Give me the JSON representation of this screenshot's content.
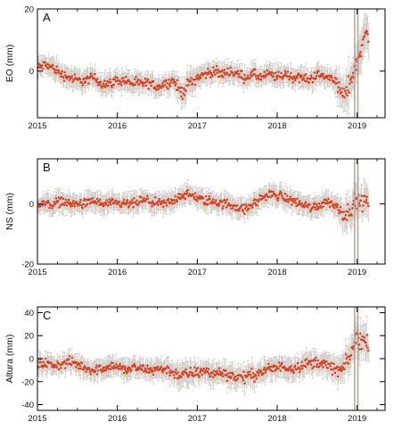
{
  "chart_data": [
    {
      "type": "scatter",
      "panel_label": "A",
      "ylabel": "EO (mm)",
      "ylim": [
        -15,
        20
      ],
      "yticks": [
        20,
        0
      ],
      "xlim": [
        2015.0,
        2019.35
      ],
      "xticks": [
        2015,
        2016,
        2017,
        2018,
        2019
      ],
      "x_tick_labels": [
        "2015",
        "2016",
        "2017",
        "2018",
        "2019"
      ],
      "error_bars": true,
      "marker_color": "#d94020",
      "errorbar_color": "#b8b2aa",
      "series": [
        {
          "x": [
            2015.0,
            2015.1,
            2015.2,
            2015.3,
            2015.4,
            2015.5,
            2015.6,
            2015.7,
            2015.8,
            2015.9,
            2016.0,
            2016.1,
            2016.2,
            2016.3,
            2016.4,
            2016.5,
            2016.6,
            2016.7,
            2016.8,
            2016.9,
            2017.0,
            2017.1,
            2017.2,
            2017.3,
            2017.4,
            2017.5,
            2017.6,
            2017.7,
            2017.8,
            2017.9,
            2018.0,
            2018.1,
            2018.2,
            2018.3,
            2018.4,
            2018.5,
            2018.6,
            2018.7,
            2018.8,
            2018.85,
            2018.9,
            2018.95,
            2019.0,
            2019.05,
            2019.1,
            2019.15
          ],
          "y": [
            1,
            2,
            1,
            -1,
            -2,
            -3,
            -3,
            -2,
            -4,
            -4,
            -3,
            -3,
            -4,
            -4,
            -4,
            -5,
            -4,
            -3,
            -7,
            -4,
            -2,
            -1,
            0,
            -1,
            0,
            -1,
            -2,
            -1,
            -2,
            -1,
            -2,
            -1,
            -2,
            -2,
            -3,
            -1,
            -2,
            -2,
            -7,
            -8,
            -4,
            -1,
            3,
            8,
            11,
            12
          ],
          "err": [
            3,
            3,
            3,
            3,
            3,
            3,
            3,
            3,
            3,
            3,
            3,
            3,
            3,
            3,
            3,
            3,
            3,
            3,
            4,
            4,
            3,
            3,
            3,
            3,
            3,
            3,
            3,
            3,
            3,
            3,
            3,
            3,
            3,
            3,
            3,
            3,
            3,
            3,
            5,
            5,
            6,
            5,
            5,
            6,
            6,
            6
          ]
        }
      ],
      "spikes": [
        {
          "x": 2018.97,
          "low": -15,
          "high": 20
        },
        {
          "x": 2019.01,
          "low": -15,
          "high": 20
        }
      ]
    },
    {
      "type": "scatter",
      "panel_label": "B",
      "ylabel": "NS (mm)",
      "ylim": [
        -20,
        15
      ],
      "yticks": [
        0,
        -20
      ],
      "xlim": [
        2015.0,
        2019.35
      ],
      "xticks": [
        2015,
        2016,
        2017,
        2018,
        2019
      ],
      "x_tick_labels": [
        "2015",
        "2016",
        "2017",
        "2018",
        "2019"
      ],
      "error_bars": true,
      "marker_color": "#d94020",
      "errorbar_color": "#b8b2aa",
      "series": [
        {
          "x": [
            2015.0,
            2015.1,
            2015.2,
            2015.3,
            2015.4,
            2015.5,
            2015.6,
            2015.7,
            2015.8,
            2015.9,
            2016.0,
            2016.1,
            2016.2,
            2016.3,
            2016.4,
            2016.5,
            2016.6,
            2016.7,
            2016.8,
            2016.9,
            2017.0,
            2017.1,
            2017.2,
            2017.3,
            2017.4,
            2017.5,
            2017.6,
            2017.7,
            2017.8,
            2017.9,
            2018.0,
            2018.1,
            2018.2,
            2018.3,
            2018.4,
            2018.5,
            2018.6,
            2018.7,
            2018.8,
            2018.85,
            2018.9,
            2018.95,
            2019.0,
            2019.05,
            2019.1,
            2019.15
          ],
          "y": [
            0,
            0,
            0,
            1,
            0,
            0,
            0,
            1,
            0,
            0,
            0,
            0,
            0,
            1,
            1,
            0,
            0,
            1,
            3,
            3,
            2,
            1,
            1,
            0,
            0,
            -1,
            -2,
            0,
            2,
            3,
            3,
            2,
            1,
            0,
            -1,
            -1,
            1,
            0,
            -2,
            -4,
            -2,
            0,
            1,
            0,
            1,
            1
          ],
          "err": [
            3,
            3,
            3,
            3,
            3,
            3,
            3,
            3,
            3,
            3,
            3,
            3,
            3,
            3,
            3,
            3,
            3,
            3,
            3,
            3,
            3,
            3,
            3,
            3,
            3,
            3,
            3,
            3,
            3,
            3,
            3,
            3,
            3,
            3,
            3,
            3,
            3,
            3,
            4,
            5,
            5,
            5,
            5,
            5,
            5,
            5
          ]
        }
      ],
      "spikes": [
        {
          "x": 2018.97,
          "low": -20,
          "high": 15
        },
        {
          "x": 2019.01,
          "low": -20,
          "high": 15
        }
      ]
    },
    {
      "type": "scatter",
      "panel_label": "C",
      "ylabel": "Altura (mm)",
      "ylim": [
        -45,
        45
      ],
      "yticks": [
        40,
        20,
        0,
        -20,
        -40
      ],
      "xlim": [
        2015.0,
        2019.35
      ],
      "xticks": [
        2015,
        2016,
        2017,
        2018,
        2019
      ],
      "x_tick_labels": [
        "2015",
        "2016",
        "2017",
        "2018",
        "2019"
      ],
      "error_bars": true,
      "marker_color": "#d94020",
      "errorbar_color": "#b8b2aa",
      "series": [
        {
          "x": [
            2015.0,
            2015.1,
            2015.2,
            2015.3,
            2015.4,
            2015.5,
            2015.6,
            2015.7,
            2015.8,
            2015.9,
            2016.0,
            2016.1,
            2016.2,
            2016.3,
            2016.4,
            2016.5,
            2016.6,
            2016.7,
            2016.8,
            2016.9,
            2017.0,
            2017.1,
            2017.2,
            2017.3,
            2017.4,
            2017.5,
            2017.6,
            2017.7,
            2017.8,
            2017.9,
            2018.0,
            2018.1,
            2018.2,
            2018.3,
            2018.4,
            2018.5,
            2018.6,
            2018.7,
            2018.8,
            2018.85,
            2018.9,
            2018.95,
            2019.0,
            2019.05,
            2019.1,
            2019.15
          ],
          "y": [
            -5,
            -4,
            -6,
            -5,
            -3,
            -5,
            -8,
            -10,
            -9,
            -6,
            -7,
            -10,
            -8,
            -9,
            -10,
            -9,
            -9,
            -12,
            -15,
            -13,
            -12,
            -11,
            -13,
            -12,
            -14,
            -16,
            -16,
            -14,
            -12,
            -9,
            -8,
            -7,
            -8,
            -6,
            -4,
            -3,
            -5,
            -9,
            -10,
            -6,
            0,
            10,
            20,
            16,
            14,
            15
          ],
          "err": [
            8,
            8,
            8,
            8,
            8,
            8,
            8,
            8,
            8,
            8,
            8,
            8,
            8,
            8,
            8,
            8,
            8,
            9,
            10,
            10,
            9,
            9,
            9,
            9,
            9,
            9,
            9,
            9,
            9,
            9,
            9,
            9,
            9,
            9,
            9,
            9,
            9,
            9,
            11,
            12,
            14,
            14,
            15,
            15,
            14,
            14
          ]
        }
      ],
      "spikes": [
        {
          "x": 2018.97,
          "low": -45,
          "high": 45
        },
        {
          "x": 2019.01,
          "low": -45,
          "high": 45
        }
      ]
    }
  ]
}
